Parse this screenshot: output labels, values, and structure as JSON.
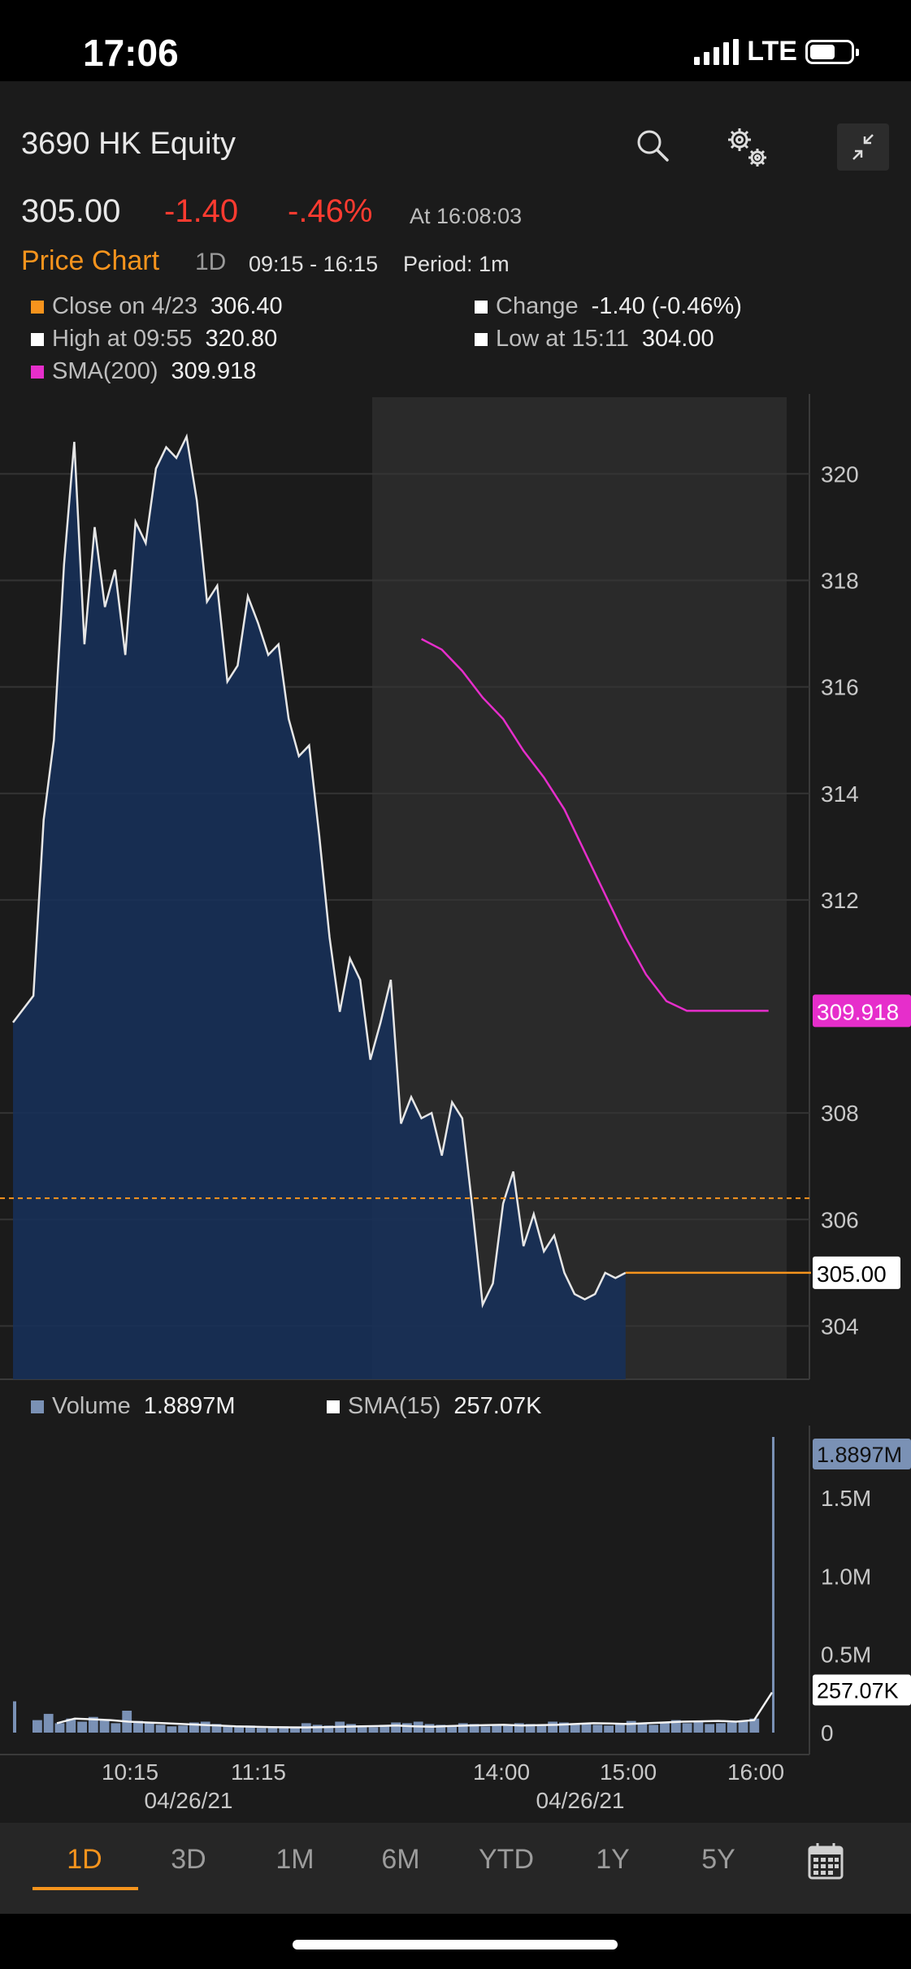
{
  "status_bar": {
    "time": "17:06",
    "network": "LTE"
  },
  "header": {
    "title": "3690 HK Equity"
  },
  "quote": {
    "last": "305.00",
    "change": "-1.40",
    "change_pct": "-.46%",
    "as_of": "At 16:08:03"
  },
  "chart_header": {
    "label": "Price Chart",
    "range": "1D",
    "hours": "09:15 - 16:15",
    "period": "Period: 1m"
  },
  "legend": {
    "close_label": "Close on 4/23",
    "close_value": "306.40",
    "change_label": "Change",
    "change_value": "-1.40 (-0.46%)",
    "high_label": "High at 09:55",
    "high_value": "320.80",
    "low_label": "Low at 15:11",
    "low_value": "304.00",
    "sma_label": "SMA(200)",
    "sma_value": "309.918"
  },
  "volume_legend": {
    "volume_label": "Volume",
    "volume_value": "1.8897M",
    "sma_label": "SMA(15)",
    "sma_value": "257.07K"
  },
  "colors": {
    "accent": "#f7941d",
    "down": "#ff3b30",
    "sma": "#e62ecb",
    "area": "#16305a",
    "volume": "#7a91b5"
  },
  "nav": {
    "tabs": [
      "1D",
      "3D",
      "1M",
      "6M",
      "YTD",
      "1Y",
      "5Y"
    ],
    "active": "1D",
    "calendar_icon": "calendar-icon"
  },
  "chart_data": [
    {
      "type": "area",
      "series": [
        {
          "name": "Price",
          "x_minutes": [
            0,
            10,
            15,
            20,
            25,
            30,
            35,
            40,
            45,
            50,
            55,
            60,
            65,
            70,
            75,
            80,
            85,
            90,
            95,
            100,
            105,
            110,
            115,
            120,
            125,
            130,
            135,
            140,
            145,
            150,
            155,
            160,
            165,
            170,
            175,
            180,
            185,
            190,
            195,
            200,
            205,
            210,
            215,
            220,
            225,
            230,
            235,
            240,
            245,
            250,
            255,
            260,
            265,
            270,
            275,
            280,
            285,
            290,
            295,
            300,
            305,
            310,
            315,
            320,
            325,
            330,
            335,
            340,
            345,
            350,
            355,
            360,
            365,
            370,
            375,
            380,
            385,
            390
          ],
          "values": [
            309.7,
            310.2,
            313.5,
            315.0,
            318.3,
            320.6,
            316.8,
            319.0,
            317.5,
            318.2,
            316.6,
            319.1,
            318.7,
            320.1,
            320.5,
            320.3,
            320.7,
            319.5,
            317.6,
            317.9,
            316.1,
            316.4,
            317.7,
            317.2,
            316.6,
            316.8,
            315.4,
            314.7,
            314.9,
            313.2,
            311.3,
            309.9,
            310.9,
            310.5,
            309.0,
            309.7,
            310.5,
            307.8,
            308.3,
            307.9,
            308.0,
            307.2,
            308.2,
            307.9,
            306.2,
            304.4,
            304.8,
            306.3,
            306.9,
            305.5,
            306.1,
            305.4,
            305.7,
            305.0,
            304.6,
            304.5,
            304.6,
            305.0,
            304.9,
            305.0,
            305.0,
            305.0,
            305.0,
            305.0,
            305.0,
            305.0,
            305.0,
            305.0,
            305.0,
            305.0,
            305.0,
            305.0,
            305.0,
            305.0,
            305.0,
            305.0,
            305.0,
            305.0
          ]
        },
        {
          "name": "SMA(200)",
          "x_minutes": [
            200,
            210,
            220,
            230,
            240,
            250,
            260,
            270,
            280,
            290,
            300,
            310,
            320,
            330,
            340,
            350,
            360,
            370,
            380,
            390
          ],
          "values": [
            316.9,
            316.7,
            316.3,
            315.8,
            315.4,
            314.8,
            314.3,
            313.7,
            312.9,
            312.1,
            311.3,
            310.6,
            310.1,
            309.918,
            309.918,
            309.918,
            309.918,
            309.918,
            309.918,
            309.918
          ]
        }
      ],
      "y_ticks": [
        "320",
        "318",
        "316",
        "314",
        "312",
        "308",
        "306",
        "304"
      ],
      "ylim": [
        303.0,
        321.5
      ],
      "reference_line": 306.4,
      "last_price_label": "305.00",
      "sma_label": "309.918",
      "grid": true
    },
    {
      "type": "bar",
      "series": [
        {
          "name": "Volume",
          "values_k": [
            80,
            120,
            60,
            90,
            70,
            100,
            85,
            60,
            140,
            75,
            60,
            50,
            40,
            45,
            65,
            70,
            55,
            40,
            35,
            45,
            30,
            35,
            40,
            30,
            60,
            50,
            45,
            70,
            55,
            40,
            35,
            50,
            65,
            60,
            70,
            55,
            50,
            45,
            60,
            55,
            40,
            50,
            45,
            60,
            55,
            50,
            70,
            65,
            60,
            55,
            50,
            45,
            60,
            75,
            55,
            50,
            65,
            80,
            60,
            70,
            55,
            60,
            65,
            70,
            90,
            1889.7
          ]
        },
        {
          "name": "SMA(15)",
          "values_k": [
            60,
            90,
            85,
            80,
            70,
            65,
            60,
            55,
            50,
            45,
            40,
            38,
            35,
            34,
            33,
            35,
            38,
            40,
            42,
            45,
            40,
            38,
            42,
            45,
            48,
            50,
            45,
            48,
            50,
            55,
            60,
            58,
            55,
            60,
            65,
            70,
            72,
            75,
            70,
            80,
            257.07
          ]
        }
      ],
      "y_ticks": [
        "1.5M",
        "1.0M",
        "0.5M",
        "0"
      ],
      "ylim": [
        0,
        1900
      ],
      "last_volume_label": "1.8897M",
      "last_sma_label": "257.07K"
    }
  ],
  "x_axis": {
    "ticks": [
      "10:15",
      "11:15",
      "14:00",
      "15:00",
      "16:00"
    ],
    "dates": [
      "04/26/21",
      "04/26/21"
    ]
  }
}
